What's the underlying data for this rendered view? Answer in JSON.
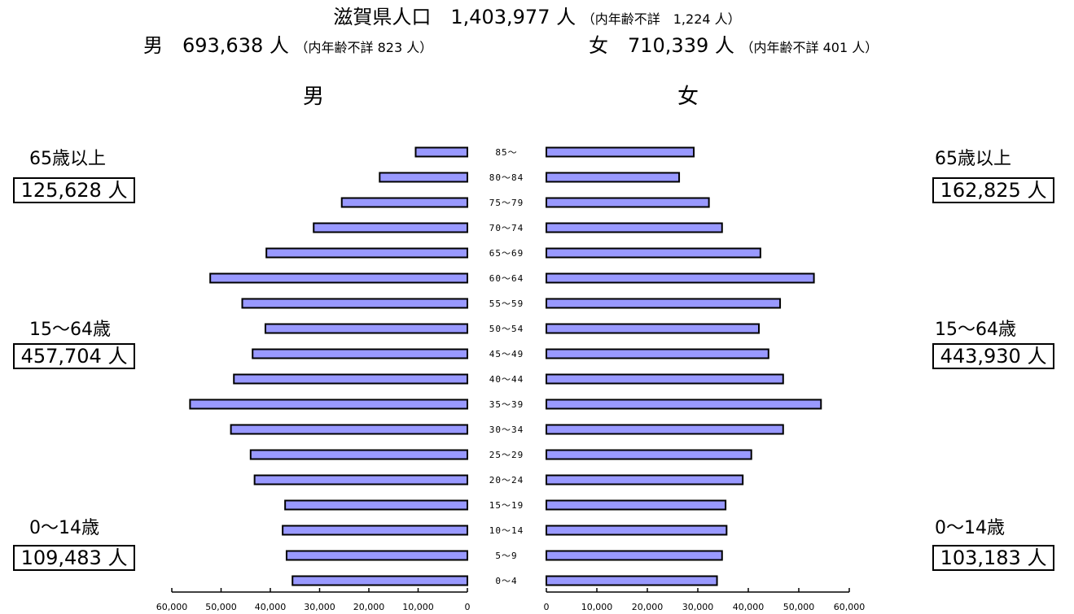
{
  "header": {
    "title_main": "滋賀県人口　1,403,977 人",
    "title_note": "（内年齢不詳　1,224 人）",
    "male_total": "男　693,638 人",
    "male_note": "（内年齢不詳 823 人）",
    "female_total": "女　710,339 人",
    "female_note": "（内年齢不詳 401 人）",
    "male_heading": "男",
    "female_heading": "女"
  },
  "groups": {
    "male": [
      {
        "label": "65歳以上",
        "value": "125,628 人"
      },
      {
        "label": "15～64歳",
        "value": "457,704 人"
      },
      {
        "label": "0～14歳",
        "value": "109,483 人"
      }
    ],
    "female": [
      {
        "label": "65歳以上",
        "value": "162,825 人"
      },
      {
        "label": "15～64歳",
        "value": "443,930 人"
      },
      {
        "label": "0～14歳",
        "value": "103,183 人"
      }
    ]
  },
  "colors": {
    "bar_fill": "#9999ff",
    "bar_stroke": "#000000"
  },
  "chart_data": {
    "type": "bar",
    "orientation": "horizontal",
    "categories": [
      "85～",
      "80～84",
      "75～79",
      "70～74",
      "65～69",
      "60～64",
      "55～59",
      "50～54",
      "45～49",
      "40～44",
      "35～39",
      "30～34",
      "25～29",
      "20～24",
      "15～19",
      "10～14",
      "5～9",
      "0～4"
    ],
    "series": [
      {
        "name": "男",
        "values": [
          10500,
          17800,
          25500,
          31200,
          40800,
          52200,
          45700,
          41000,
          43600,
          47400,
          56300,
          48000,
          44000,
          43200,
          37000,
          37500,
          36700,
          35500
        ]
      },
      {
        "name": "女",
        "values": [
          29200,
          26300,
          32200,
          34800,
          42400,
          53000,
          46300,
          42100,
          44000,
          46900,
          54400,
          46900,
          40600,
          38900,
          35500,
          35700,
          34800,
          33800
        ]
      }
    ],
    "x_ticks": [
      "60,000",
      "50,000",
      "40,000",
      "30,000",
      "20,000",
      "10,000",
      "0"
    ],
    "x_ticks_right": [
      "0",
      "10,000",
      "20,000",
      "30,000",
      "40,000",
      "50,000",
      "60,000"
    ],
    "xlim": [
      0,
      60000
    ]
  }
}
